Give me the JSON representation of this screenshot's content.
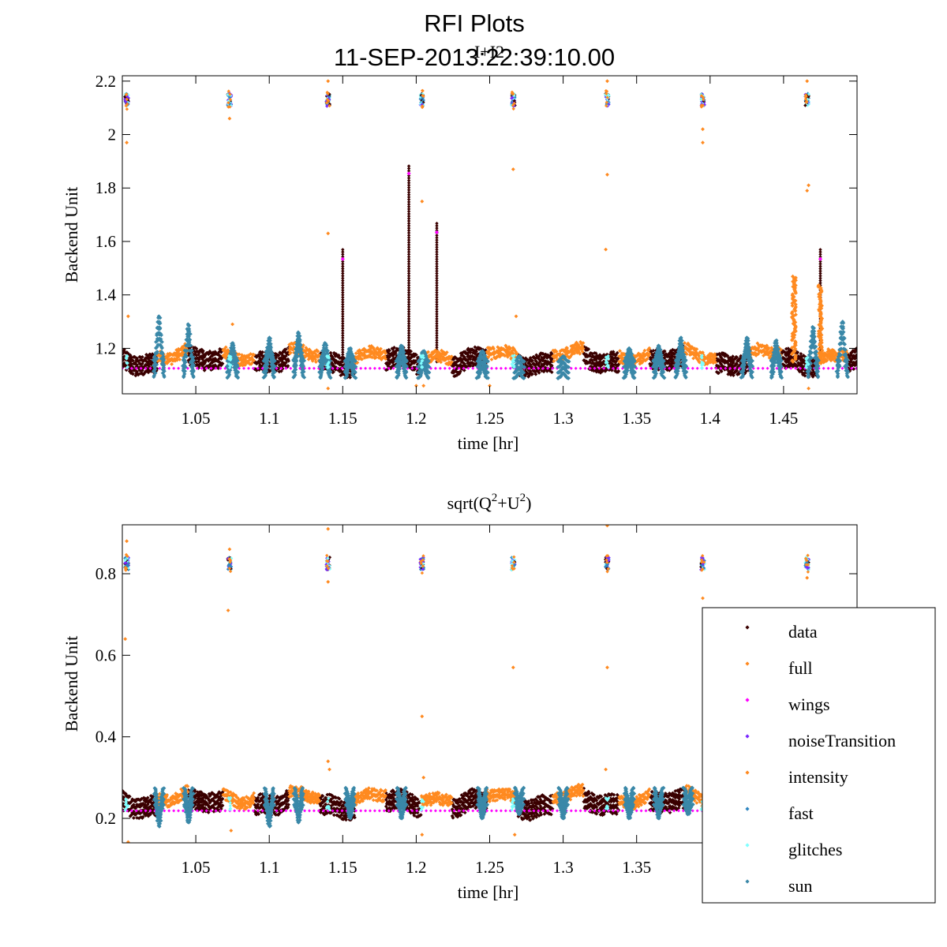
{
  "figure": {
    "title": "RFI Plots",
    "subtitle": "11-SEP-2013:22:39:10.00"
  },
  "colors": {
    "data": "#3a0000",
    "full": "#ff8a20",
    "wings": "#ff00ff",
    "noiseTransition": "#7a28ff",
    "intensity": "#ff8a20",
    "fast": "#2e86c1",
    "glitches": "#80ffff",
    "sun": "#3a88a8"
  },
  "legend": {
    "position": "bottom-right",
    "entries": [
      "data",
      "full",
      "wings",
      "noiseTransition",
      "intensity",
      "fast",
      "glitches",
      "sun"
    ]
  },
  "chart_data": [
    {
      "type": "scatter",
      "title": "I+I2",
      "xlabel": "time [hr]",
      "ylabel": "Backend Unit",
      "xlim": [
        1.0,
        1.5
      ],
      "ylim": [
        1.03,
        2.22
      ],
      "xticks": [
        "1.05",
        "1.1",
        "1.15",
        "1.2",
        "1.25",
        "1.3",
        "1.35",
        "1.4",
        "1.45"
      ],
      "yticks": [
        "1.2",
        "1.4",
        "1.6",
        "1.8",
        "2",
        "2.2"
      ],
      "baseline": 1.15,
      "calibration_times": [
        1.003,
        1.073,
        1.14,
        1.204,
        1.266,
        1.33,
        1.395,
        1.466
      ],
      "calibration_level": 2.13,
      "sun_bumps": [
        {
          "x": 1.025,
          "peak": 1.32
        },
        {
          "x": 1.045,
          "peak": 1.29
        },
        {
          "x": 1.075,
          "peak": 1.22
        },
        {
          "x": 1.1,
          "peak": 1.24
        },
        {
          "x": 1.12,
          "peak": 1.26
        },
        {
          "x": 1.138,
          "peak": 1.22
        },
        {
          "x": 1.155,
          "peak": 1.2
        },
        {
          "x": 1.19,
          "peak": 1.21
        },
        {
          "x": 1.205,
          "peak": 1.19
        },
        {
          "x": 1.245,
          "peak": 1.19
        },
        {
          "x": 1.27,
          "peak": 1.17
        },
        {
          "x": 1.3,
          "peak": 1.17
        },
        {
          "x": 1.345,
          "peak": 1.2
        },
        {
          "x": 1.365,
          "peak": 1.21
        },
        {
          "x": 1.38,
          "peak": 1.24
        },
        {
          "x": 1.425,
          "peak": 1.24
        },
        {
          "x": 1.445,
          "peak": 1.23
        },
        {
          "x": 1.47,
          "peak": 1.28
        },
        {
          "x": 1.49,
          "peak": 1.3
        }
      ],
      "data_spikes": [
        {
          "x": 1.15,
          "top": 1.57
        },
        {
          "x": 1.195,
          "top": 1.89
        },
        {
          "x": 1.214,
          "top": 1.67
        },
        {
          "x": 1.475,
          "top": 1.57
        }
      ],
      "intensity_spikes": [
        {
          "x": 1.457,
          "top": 1.47
        },
        {
          "x": 1.475,
          "top": 1.44
        }
      ],
      "outliers": [
        {
          "x": 1.003,
          "y": 1.97
        },
        {
          "x": 1.004,
          "y": 1.32
        },
        {
          "x": 1.073,
          "y": 2.06
        },
        {
          "x": 1.075,
          "y": 1.29
        },
        {
          "x": 1.14,
          "y": 1.63
        },
        {
          "x": 1.14,
          "y": 2.2
        },
        {
          "x": 1.14,
          "y": 1.05
        },
        {
          "x": 1.204,
          "y": 1.75
        },
        {
          "x": 1.205,
          "y": 1.06
        },
        {
          "x": 1.266,
          "y": 1.87
        },
        {
          "x": 1.268,
          "y": 1.32
        },
        {
          "x": 1.33,
          "y": 1.85
        },
        {
          "x": 1.329,
          "y": 1.57
        },
        {
          "x": 1.33,
          "y": 2.2
        },
        {
          "x": 1.395,
          "y": 2.02
        },
        {
          "x": 1.395,
          "y": 1.97
        },
        {
          "x": 1.466,
          "y": 1.79
        },
        {
          "x": 1.467,
          "y": 1.81
        },
        {
          "x": 1.466,
          "y": 2.2
        },
        {
          "x": 1.467,
          "y": 1.05
        },
        {
          "x": 1.2,
          "y": 1.06
        },
        {
          "x": 1.25,
          "y": 1.06
        }
      ]
    },
    {
      "type": "scatter",
      "title": "sqrt(Q²+U²)",
      "title_parts": {
        "a": "sqrt(Q",
        "sup1": "2",
        "b": "+U",
        "sup2": "2",
        "c": ")"
      },
      "xlabel": "time [hr]",
      "ylabel": "Backend Unit",
      "xlim": [
        1.0,
        1.5
      ],
      "ylim": [
        0.14,
        0.92
      ],
      "xticks": [
        "1.05",
        "1.1",
        "1.15",
        "1.2",
        "1.25",
        "1.3",
        "1.35"
      ],
      "yticks": [
        "0.2",
        "0.4",
        "0.6",
        "0.8"
      ],
      "baseline": 0.235,
      "calibration_times": [
        1.003,
        1.073,
        1.14,
        1.204,
        1.266,
        1.33,
        1.395,
        1.466
      ],
      "calibration_level": 0.825,
      "sun_dips": [
        {
          "x": 1.025,
          "low": 0.18
        },
        {
          "x": 1.045,
          "low": 0.19
        },
        {
          "x": 1.1,
          "low": 0.18
        },
        {
          "x": 1.12,
          "low": 0.19
        },
        {
          "x": 1.155,
          "low": 0.2
        },
        {
          "x": 1.19,
          "low": 0.2
        },
        {
          "x": 1.245,
          "low": 0.2
        },
        {
          "x": 1.27,
          "low": 0.21
        },
        {
          "x": 1.3,
          "low": 0.2
        },
        {
          "x": 1.345,
          "low": 0.2
        },
        {
          "x": 1.365,
          "low": 0.2
        },
        {
          "x": 1.385,
          "low": 0.21
        }
      ],
      "outliers": [
        {
          "x": 1.003,
          "y": 0.88
        },
        {
          "x": 1.002,
          "y": 0.64
        },
        {
          "x": 1.004,
          "y": 0.14
        },
        {
          "x": 1.072,
          "y": 0.71
        },
        {
          "x": 1.073,
          "y": 0.86
        },
        {
          "x": 1.074,
          "y": 0.17
        },
        {
          "x": 1.14,
          "y": 0.34
        },
        {
          "x": 1.141,
          "y": 0.32
        },
        {
          "x": 1.14,
          "y": 0.91
        },
        {
          "x": 1.14,
          "y": 0.78
        },
        {
          "x": 1.204,
          "y": 0.45
        },
        {
          "x": 1.205,
          "y": 0.3
        },
        {
          "x": 1.204,
          "y": 0.16
        },
        {
          "x": 1.266,
          "y": 0.57
        },
        {
          "x": 1.267,
          "y": 0.16
        },
        {
          "x": 1.33,
          "y": 0.57
        },
        {
          "x": 1.329,
          "y": 0.32
        },
        {
          "x": 1.33,
          "y": 0.92
        },
        {
          "x": 1.395,
          "y": 0.74
        },
        {
          "x": 1.466,
          "y": 0.79
        }
      ]
    }
  ]
}
